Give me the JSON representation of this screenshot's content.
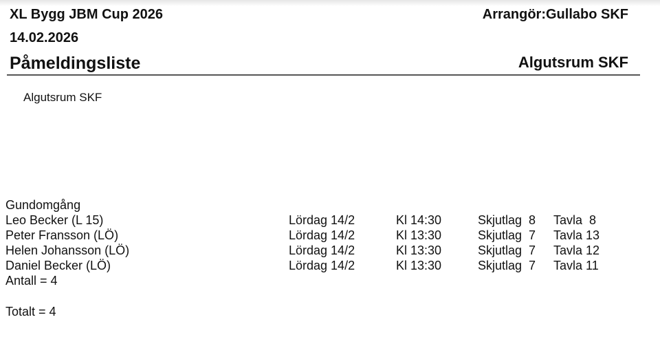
{
  "header": {
    "event_title": "XL Bygg JBM Cup 2026",
    "organizer": "Arrangör:Gullabo SKF",
    "date": "14.02.2026",
    "list_title": "Påmeldingsliste",
    "club": "Algutsrum SKF"
  },
  "club_heading": "Algutsrum SKF",
  "section": {
    "title": "Gundomgång",
    "rows": [
      {
        "name": "Leo Becker (L 15)",
        "day": "Lördag 14/2",
        "time": "Kl 14:30",
        "squad": "Skjutlag  8",
        "target": "Tavla  8"
      },
      {
        "name": "Peter Fransson (LÖ)",
        "day": "Lördag 14/2",
        "time": "Kl 13:30",
        "squad": "Skjutlag  7",
        "target": "Tavla 13"
      },
      {
        "name": "Helen Johansson (LÖ)",
        "day": "Lördag 14/2",
        "time": "Kl 13:30",
        "squad": "Skjutlag  7",
        "target": "Tavla 12"
      },
      {
        "name": "Daniel Becker (LÖ)",
        "day": "Lördag 14/2",
        "time": "Kl 13:30",
        "squad": "Skjutlag  7",
        "target": "Tavla 11"
      }
    ],
    "count": "Antall = 4"
  },
  "total": "Totalt = 4"
}
